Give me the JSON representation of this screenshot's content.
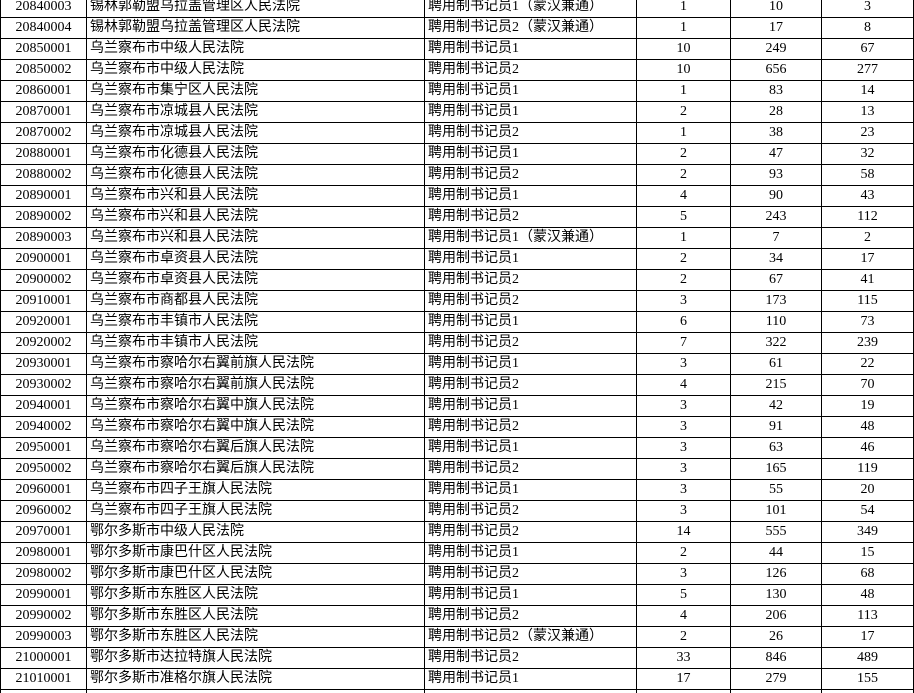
{
  "table": {
    "rows": [
      [
        "20840003",
        "锡林郭勒盟乌拉盖管理区人民法院",
        "聘用制书记员1（蒙汉兼通）",
        1,
        10,
        3
      ],
      [
        "20840004",
        "锡林郭勒盟乌拉盖管理区人民法院",
        "聘用制书记员2（蒙汉兼通）",
        1,
        17,
        8
      ],
      [
        "20850001",
        "乌兰察布市中级人民法院",
        "聘用制书记员1",
        10,
        249,
        67
      ],
      [
        "20850002",
        "乌兰察布市中级人民法院",
        "聘用制书记员2",
        10,
        656,
        277
      ],
      [
        "20860001",
        "乌兰察布市集宁区人民法院",
        "聘用制书记员1",
        1,
        83,
        14
      ],
      [
        "20870001",
        "乌兰察布市凉城县人民法院",
        "聘用制书记员1",
        2,
        28,
        13
      ],
      [
        "20870002",
        "乌兰察布市凉城县人民法院",
        "聘用制书记员2",
        1,
        38,
        23
      ],
      [
        "20880001",
        "乌兰察布市化德县人民法院",
        "聘用制书记员1",
        2,
        47,
        32
      ],
      [
        "20880002",
        "乌兰察布市化德县人民法院",
        "聘用制书记员2",
        2,
        93,
        58
      ],
      [
        "20890001",
        "乌兰察布市兴和县人民法院",
        "聘用制书记员1",
        4,
        90,
        43
      ],
      [
        "20890002",
        "乌兰察布市兴和县人民法院",
        "聘用制书记员2",
        5,
        243,
        112
      ],
      [
        "20890003",
        "乌兰察布市兴和县人民法院",
        "聘用制书记员1（蒙汉兼通）",
        1,
        7,
        2
      ],
      [
        "20900001",
        "乌兰察布市卓资县人民法院",
        "聘用制书记员1",
        2,
        34,
        17
      ],
      [
        "20900002",
        "乌兰察布市卓资县人民法院",
        "聘用制书记员2",
        2,
        67,
        41
      ],
      [
        "20910001",
        "乌兰察布市商都县人民法院",
        "聘用制书记员2",
        3,
        173,
        115
      ],
      [
        "20920001",
        "乌兰察布市丰镇市人民法院",
        "聘用制书记员1",
        6,
        110,
        73
      ],
      [
        "20920002",
        "乌兰察布市丰镇市人民法院",
        "聘用制书记员2",
        7,
        322,
        239
      ],
      [
        "20930001",
        "乌兰察布市察哈尔右翼前旗人民法院",
        "聘用制书记员1",
        3,
        61,
        22
      ],
      [
        "20930002",
        "乌兰察布市察哈尔右翼前旗人民法院",
        "聘用制书记员2",
        4,
        215,
        70
      ],
      [
        "20940001",
        "乌兰察布市察哈尔右翼中旗人民法院",
        "聘用制书记员1",
        3,
        42,
        19
      ],
      [
        "20940002",
        "乌兰察布市察哈尔右翼中旗人民法院",
        "聘用制书记员2",
        3,
        91,
        48
      ],
      [
        "20950001",
        "乌兰察布市察哈尔右翼后旗人民法院",
        "聘用制书记员1",
        3,
        63,
        46
      ],
      [
        "20950002",
        "乌兰察布市察哈尔右翼后旗人民法院",
        "聘用制书记员2",
        3,
        165,
        119
      ],
      [
        "20960001",
        "乌兰察布市四子王旗人民法院",
        "聘用制书记员1",
        3,
        55,
        20
      ],
      [
        "20960002",
        "乌兰察布市四子王旗人民法院",
        "聘用制书记员2",
        3,
        101,
        54
      ],
      [
        "20970001",
        "鄂尔多斯市中级人民法院",
        "聘用制书记员2",
        14,
        555,
        349
      ],
      [
        "20980001",
        "鄂尔多斯市康巴什区人民法院",
        "聘用制书记员1",
        2,
        44,
        15
      ],
      [
        "20980002",
        "鄂尔多斯市康巴什区人民法院",
        "聘用制书记员2",
        3,
        126,
        68
      ],
      [
        "20990001",
        "鄂尔多斯市东胜区人民法院",
        "聘用制书记员1",
        5,
        130,
        48
      ],
      [
        "20990002",
        "鄂尔多斯市东胜区人民法院",
        "聘用制书记员2",
        4,
        206,
        113
      ],
      [
        "20990003",
        "鄂尔多斯市东胜区人民法院",
        "聘用制书记员2（蒙汉兼通）",
        2,
        26,
        17
      ],
      [
        "21000001",
        "鄂尔多斯市达拉特旗人民法院",
        "聘用制书记员2",
        33,
        846,
        489
      ],
      [
        "21010001",
        "鄂尔多斯市准格尔旗人民法院",
        "聘用制书记员1",
        17,
        279,
        155
      ]
    ]
  }
}
